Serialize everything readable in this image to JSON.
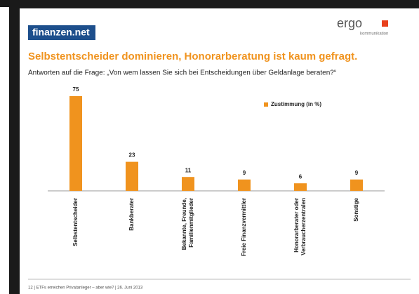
{
  "logos": {
    "left": "finanzen.net",
    "right": "ergo",
    "right_sub": "kommunikation"
  },
  "chart_data": {
    "type": "bar",
    "title": "Selbstentscheider dominieren, Honorarberatung ist kaum gefragt.",
    "subtitle": "Antworten auf die Frage: „Von wem lassen Sie sich bei Entscheidungen über Geldanlage beraten?“",
    "categories": [
      "Selbstentscheider",
      "Bankberater",
      "Bekannte, Freunde,\nFamilienmitglieder",
      "Freie Finanzvermittler",
      "Honorarberater oder\nVerbraucherzentralen",
      "Sonstige"
    ],
    "series": [
      {
        "name": "Zustimmung (in %)",
        "color": "#f0931e",
        "values": [
          75,
          23,
          11,
          9,
          6,
          9
        ]
      }
    ]
  },
  "footer": "12  |  ETFs erreichen Privatanleger – aber wie?  |  26. Juni 2013"
}
